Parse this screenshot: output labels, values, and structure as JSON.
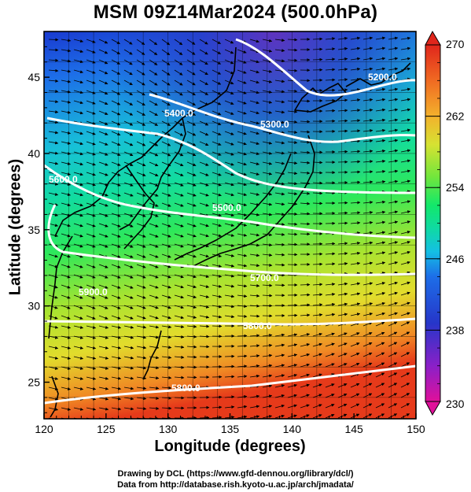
{
  "title": "MSM 09Z14Mar2024 (500.0hPa)",
  "x_axis": {
    "label": "Longitude (degrees)",
    "ticks": [
      120,
      125,
      130,
      135,
      140,
      145,
      150
    ]
  },
  "y_axis": {
    "label": "Latitude  (degrees)",
    "ticks": [
      25,
      30,
      35,
      40,
      45
    ]
  },
  "colorbar": {
    "tick_labels": [
      "270",
      "262",
      "254",
      "246",
      "238",
      "230"
    ],
    "min": 230,
    "max": 270,
    "colors": [
      "#e0109a",
      "#8a20c8",
      "#2636c9",
      "#1d6ee8",
      "#14bfe4",
      "#10d8a8",
      "#12e86a",
      "#72e63c",
      "#d6e232",
      "#f3b12c",
      "#f06a22",
      "#e0261c"
    ]
  },
  "contour_labels": [
    "5200.0",
    "5300.0",
    "5400.0",
    "5500.0",
    "5600.0",
    "5700.0",
    "5800.0",
    "5800.0",
    "5900.0"
  ],
  "credits": [
    "Drawing by DCL (https://www.gfd-dennou.org/library/dcl/)",
    "Data from http://database.rish.kyoto-u.ac.jp/arch/jmadata/"
  ]
}
